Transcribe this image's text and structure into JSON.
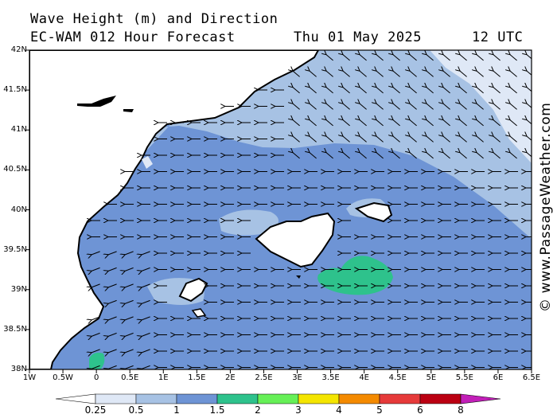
{
  "header": {
    "title": "Wave Height (m) and Direction",
    "model": "EC-WAM 012 Hour Forecast",
    "date": "Thu 01 May 2025",
    "time": "12 UTC"
  },
  "credit": "© www.PassageWeather.com",
  "map": {
    "lat_ticks": [
      "42N",
      "41.5N",
      "41N",
      "40.5N",
      "40N",
      "39.5N",
      "39N",
      "38.5N",
      "38N"
    ],
    "lon_ticks": [
      "1W",
      "0.5W",
      "0",
      "0.5E",
      "1E",
      "1.5E",
      "2E",
      "2.5E",
      "3E",
      "3.5E",
      "4E",
      "4.5E",
      "5E",
      "5.5E",
      "6E",
      "6.5E"
    ],
    "arrow_direction": "toward south-west (waves from north-east)"
  },
  "legend": {
    "labels": [
      "0.25",
      "0.5",
      "1",
      "1.5",
      "2",
      "3",
      "4",
      "5",
      "6",
      "8"
    ],
    "colors": [
      "#dfe8f6",
      "#a7c2e4",
      "#6e94d5",
      "#2ec28c",
      "#66f057",
      "#f4e500",
      "#f48a00",
      "#e63a3a",
      "#bb0012",
      "#c21fb8"
    ]
  }
}
